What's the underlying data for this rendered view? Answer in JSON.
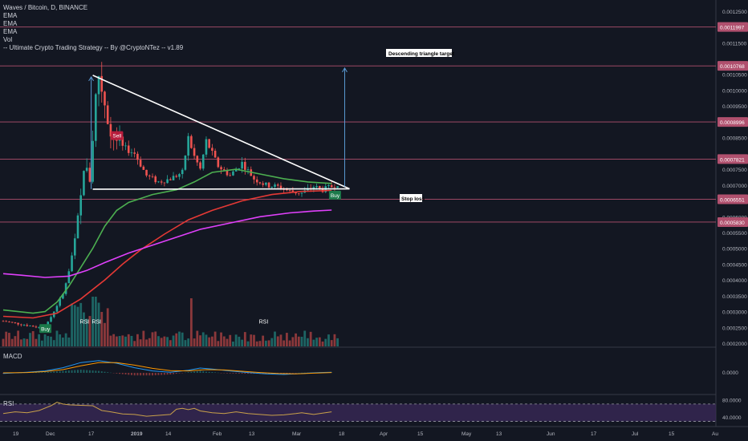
{
  "legend": {
    "symbol": "Waves / Bitcoin, D, BINANCE",
    "lines": [
      "EMA",
      "EMA",
      "EMA",
      "Vol",
      "-- Ultimate Crypto Trading Strategy -- By @CryptoNTez -- v1.89"
    ]
  },
  "panes": {
    "macd_label": "MACD",
    "rsi_label": "RSI"
  },
  "colors": {
    "background": "#131722",
    "up": "#26a69a",
    "down": "#ef5350",
    "ema_fast": "#4caf50",
    "ema_mid": "#e53935",
    "ema_slow": "#e040fb",
    "level": "#b0506e",
    "macd": "#2196f3",
    "signal": "#ff9800",
    "rsi": "#c8a04a"
  },
  "chart_data": {
    "type": "candlestick",
    "title": "Waves / Bitcoin, D, BINANCE",
    "y_axis": {
      "ticks": [
        "0.0012500",
        "0.0011997",
        "0.0011500",
        "0.0010768",
        "0.0010500",
        "0.0010000",
        "0.0009500",
        "0.0008996",
        "0.0008500",
        "0.0007821",
        "0.0007500",
        "0.0007000",
        "0.0006551",
        "0.0006000",
        "0.0005830",
        "0.0005500",
        "0.0005000",
        "0.0004500",
        "0.0004000",
        "0.0003500",
        "0.0003000",
        "0.0002500",
        "0.0002000"
      ],
      "ylim": [
        0.00019,
        0.00128
      ]
    },
    "x_axis": {
      "ticks": [
        "19",
        "Dec",
        "17",
        "2019",
        "14",
        "Feb",
        "13",
        "Mar",
        "18",
        "Apr",
        "15",
        "May",
        "13",
        "Jun",
        "17",
        "Jul",
        "15",
        "Au"
      ]
    },
    "levels": [
      {
        "value": 0.0011997,
        "label": "0.0011997"
      },
      {
        "value": 0.0010768,
        "label": "0.0010768"
      },
      {
        "value": 0.0008996,
        "label": "0.0008996"
      },
      {
        "value": 0.0007821,
        "label": "0.0007821"
      },
      {
        "value": 0.0006551,
        "label": "0.0006551"
      },
      {
        "value": 0.000583,
        "label": "0.0005830"
      }
    ],
    "annotations": {
      "target": "Descending triangle target",
      "stop": "Stop loss",
      "signals": [
        {
          "text": "Buy",
          "kind": "buy",
          "day": 14,
          "price": 0.000245
        },
        {
          "text": "RSI",
          "kind": "label",
          "day": 27,
          "price": 0.000262
        },
        {
          "text": "RSI",
          "kind": "label",
          "day": 31,
          "price": 0.000262
        },
        {
          "text": "Sell",
          "kind": "sell",
          "day": 38,
          "price": 0.000855
        },
        {
          "text": "RSI",
          "kind": "label",
          "day": 87,
          "price": 0.000262
        },
        {
          "text": "Buy",
          "kind": "buy",
          "day": 111,
          "price": 0.000667
        }
      ]
    },
    "triangle": {
      "top": [
        {
          "day": 30,
          "price": 0.001047
        },
        {
          "day": 116,
          "price": 0.000688
        }
      ],
      "bottom": [
        {
          "day": 30,
          "price": 0.000687
        },
        {
          "day": 116,
          "price": 0.000688
        }
      ],
      "target_arrow": {
        "day": 109,
        "from": 0.000695,
        "to": 0.00107
      }
    },
    "ema_fast": [
      [
        0,
        0.000305
      ],
      [
        10,
        0.000295
      ],
      [
        14,
        0.0003
      ],
      [
        18,
        0.00033
      ],
      [
        22,
        0.00038
      ],
      [
        26,
        0.00044
      ],
      [
        30,
        0.0005
      ],
      [
        34,
        0.00057
      ],
      [
        38,
        0.00062
      ],
      [
        42,
        0.000645
      ],
      [
        50,
        0.00067
      ],
      [
        58,
        0.000685
      ],
      [
        64,
        0.00071
      ],
      [
        70,
        0.00074
      ],
      [
        78,
        0.00075
      ],
      [
        86,
        0.000735
      ],
      [
        94,
        0.00072
      ],
      [
        102,
        0.00071
      ],
      [
        110,
        0.000705
      ]
    ],
    "ema_mid": [
      [
        0,
        0.000285
      ],
      [
        10,
        0.00028
      ],
      [
        18,
        0.000295
      ],
      [
        26,
        0.00034
      ],
      [
        34,
        0.0004
      ],
      [
        40,
        0.00045
      ],
      [
        46,
        0.000495
      ],
      [
        54,
        0.000545
      ],
      [
        62,
        0.00059
      ],
      [
        70,
        0.00062
      ],
      [
        80,
        0.00065
      ],
      [
        90,
        0.00067
      ],
      [
        100,
        0.00068
      ],
      [
        110,
        0.000683
      ]
    ],
    "ema_slow": [
      [
        0,
        0.00042
      ],
      [
        6,
        0.000415
      ],
      [
        14,
        0.000408
      ],
      [
        22,
        0.000412
      ],
      [
        28,
        0.00043
      ],
      [
        34,
        0.000455
      ],
      [
        42,
        0.000485
      ],
      [
        50,
        0.00051
      ],
      [
        58,
        0.000535
      ],
      [
        66,
        0.00056
      ],
      [
        76,
        0.00058
      ],
      [
        86,
        0.0006
      ],
      [
        96,
        0.000612
      ],
      [
        104,
        0.000618
      ],
      [
        110,
        0.000621
      ]
    ]
  },
  "macd": {
    "macd_line": [
      [
        0,
        -0.1
      ],
      [
        8,
        0.1
      ],
      [
        14,
        0.3
      ],
      [
        20,
        0.8
      ],
      [
        26,
        1.6
      ],
      [
        32,
        1.9
      ],
      [
        38,
        1.5
      ],
      [
        44,
        0.8
      ],
      [
        50,
        0.3
      ],
      [
        56,
        0.1
      ],
      [
        62,
        0.4
      ],
      [
        66,
        0.75
      ],
      [
        70,
        0.6
      ],
      [
        76,
        0.3
      ],
      [
        82,
        0.05
      ],
      [
        88,
        -0.15
      ],
      [
        94,
        -0.25
      ],
      [
        100,
        -0.1
      ],
      [
        106,
        0.05
      ],
      [
        110,
        0.1
      ]
    ],
    "signal_line": [
      [
        0,
        0.0
      ],
      [
        8,
        0.05
      ],
      [
        14,
        0.2
      ],
      [
        20,
        0.5
      ],
      [
        26,
        1.1
      ],
      [
        32,
        1.6
      ],
      [
        38,
        1.6
      ],
      [
        44,
        1.2
      ],
      [
        50,
        0.7
      ],
      [
        56,
        0.35
      ],
      [
        62,
        0.3
      ],
      [
        68,
        0.5
      ],
      [
        74,
        0.45
      ],
      [
        80,
        0.25
      ],
      [
        86,
        0.05
      ],
      [
        92,
        -0.1
      ],
      [
        98,
        -0.15
      ],
      [
        104,
        -0.05
      ],
      [
        110,
        0.05
      ]
    ],
    "tick": "0.0000"
  },
  "rsi": {
    "ticks": [
      "80.0000",
      "40.0000"
    ],
    "upper": 70,
    "lower": 30,
    "values": [
      [
        0,
        48
      ],
      [
        4,
        52
      ],
      [
        8,
        50
      ],
      [
        12,
        55
      ],
      [
        16,
        66
      ],
      [
        18,
        74
      ],
      [
        20,
        70
      ],
      [
        22,
        68
      ],
      [
        26,
        67
      ],
      [
        30,
        66
      ],
      [
        33,
        55
      ],
      [
        36,
        52
      ],
      [
        40,
        47
      ],
      [
        44,
        46
      ],
      [
        48,
        42
      ],
      [
        52,
        44
      ],
      [
        56,
        46
      ],
      [
        58,
        58
      ],
      [
        60,
        60
      ],
      [
        62,
        57
      ],
      [
        64,
        60
      ],
      [
        66,
        54
      ],
      [
        70,
        50
      ],
      [
        74,
        48
      ],
      [
        78,
        52
      ],
      [
        82,
        48
      ],
      [
        86,
        46
      ],
      [
        90,
        44
      ],
      [
        94,
        45
      ],
      [
        98,
        48
      ],
      [
        100,
        50
      ],
      [
        104,
        46
      ],
      [
        106,
        48
      ],
      [
        110,
        52
      ]
    ]
  }
}
